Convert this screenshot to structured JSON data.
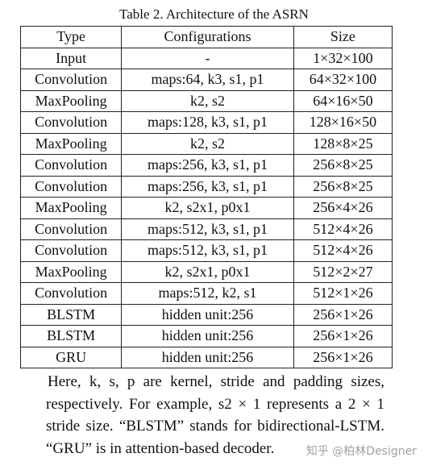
{
  "title": "Table 2. Architecture of the ASRN",
  "table": {
    "header": [
      "Type",
      "Configurations",
      "Size"
    ],
    "rows": [
      [
        "Input",
        "-",
        "1×32×100"
      ],
      [
        "Convolution",
        "maps:64, k3, s1, p1",
        "64×32×100"
      ],
      [
        "MaxPooling",
        "k2, s2",
        "64×16×50"
      ],
      [
        "Convolution",
        "maps:128, k3, s1, p1",
        "128×16×50"
      ],
      [
        "MaxPooling",
        "k2, s2",
        "128×8×25"
      ],
      [
        "Convolution",
        "maps:256, k3, s1, p1",
        "256×8×25"
      ],
      [
        "Convolution",
        "maps:256, k3, s1, p1",
        "256×8×25"
      ],
      [
        "MaxPooling",
        "k2, s2x1, p0x1",
        "256×4×26"
      ],
      [
        "Convolution",
        "maps:512, k3, s1, p1",
        "512×4×26"
      ],
      [
        "Convolution",
        "maps:512, k3, s1, p1",
        "512×4×26"
      ],
      [
        "MaxPooling",
        "k2, s2x1, p0x1",
        "512×2×27"
      ],
      [
        "Convolution",
        "maps:512, k2, s1",
        "512×1×26"
      ],
      [
        "BLSTM",
        "hidden unit:256",
        "256×1×26"
      ],
      [
        "BLSTM",
        "hidden unit:256",
        "256×1×26"
      ],
      [
        "GRU",
        "hidden unit:256",
        "256×1×26"
      ]
    ]
  },
  "note": "Here, k, s, p are kernel, stride and padding sizes, respectively. For example, s2 × 1 represents a 2 × 1 stride size. “BLSTM” stands for bidirectional-LSTM. “GRU” is in attention-based decoder.",
  "watermark": "知乎 @柏林Designer"
}
